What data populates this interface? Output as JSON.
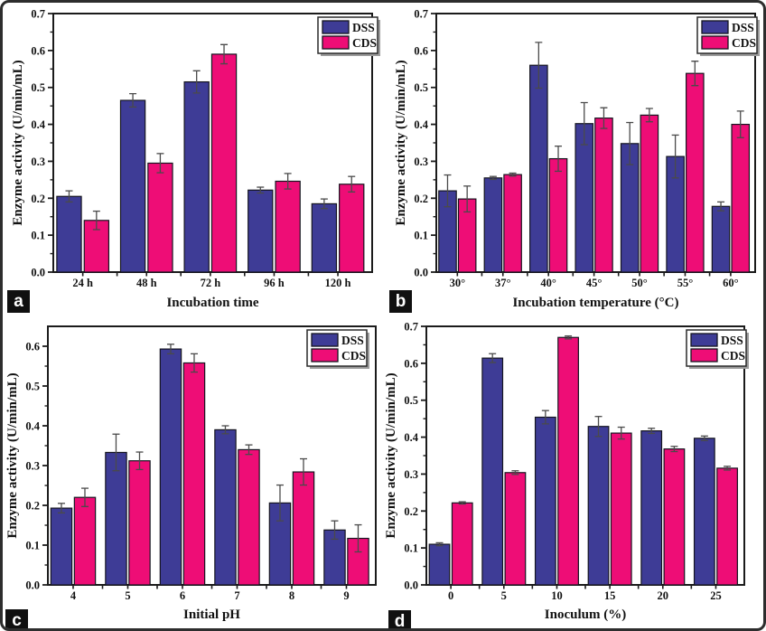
{
  "figure": {
    "description": "Four-panel grouped bar chart figure of enzyme activity under varying culture conditions",
    "background": "#ffffff",
    "border_color": "#2d2d2d",
    "series_colors": {
      "DSS": "#3e3c96",
      "CDS": "#ee0d76"
    },
    "legend_labels": [
      "DSS",
      "CDS"
    ],
    "panel_tags": [
      "a",
      "b",
      "c",
      "d"
    ]
  },
  "chart_data": [
    {
      "type": "bar",
      "tag": "a",
      "title": "",
      "xlabel": "Incubation time",
      "ylabel": "Enzyme activity (U/min/mL)",
      "categories": [
        "24 h",
        "48 h",
        "72 h",
        "96 h",
        "120 h"
      ],
      "ylim": [
        0,
        0.7
      ],
      "ytick_step": 0.1,
      "ytick_label_max": 0.7,
      "grid": false,
      "legend_position": "top-right",
      "series": [
        {
          "name": "DSS",
          "color": "#3e3c96",
          "values": [
            0.205,
            0.465,
            0.515,
            0.222,
            0.185
          ],
          "errors": [
            0.015,
            0.018,
            0.03,
            0.008,
            0.013
          ]
        },
        {
          "name": "CDS",
          "color": "#ee0d76",
          "values": [
            0.14,
            0.295,
            0.59,
            0.246,
            0.238
          ],
          "errors": [
            0.025,
            0.026,
            0.026,
            0.021,
            0.021
          ]
        }
      ]
    },
    {
      "type": "bar",
      "tag": "b",
      "title": "",
      "xlabel": "Incubation temperature (°C)",
      "ylabel": "Enzyme activity (U/min/mL)",
      "categories": [
        "30°",
        "37°",
        "40°",
        "45°",
        "50°",
        "55°",
        "60°"
      ],
      "ylim": [
        0,
        0.7
      ],
      "ytick_step": 0.1,
      "ytick_label_max": 0.7,
      "grid": false,
      "legend_position": "top-right",
      "series": [
        {
          "name": "DSS",
          "color": "#3e3c96",
          "values": [
            0.22,
            0.255,
            0.56,
            0.402,
            0.348,
            0.313,
            0.178
          ],
          "errors": [
            0.043,
            0.004,
            0.062,
            0.057,
            0.057,
            0.058,
            0.012
          ]
        },
        {
          "name": "CDS",
          "color": "#ee0d76",
          "values": [
            0.198,
            0.264,
            0.307,
            0.417,
            0.425,
            0.538,
            0.4
          ],
          "errors": [
            0.035,
            0.004,
            0.034,
            0.028,
            0.018,
            0.033,
            0.036
          ]
        }
      ]
    },
    {
      "type": "bar",
      "tag": "c",
      "title": "",
      "xlabel": "Initial pH",
      "ylabel": "Enzyme activity (U/min/mL)",
      "categories": [
        "4",
        "5",
        "6",
        "7",
        "8",
        "9"
      ],
      "ylim": [
        0,
        0.65
      ],
      "ytick_step": 0.1,
      "ytick_label_max": 0.6,
      "grid": false,
      "legend_position": "top-right",
      "series": [
        {
          "name": "DSS",
          "color": "#3e3c96",
          "values": [
            0.193,
            0.333,
            0.593,
            0.39,
            0.206,
            0.138
          ],
          "errors": [
            0.012,
            0.046,
            0.012,
            0.01,
            0.045,
            0.023
          ]
        },
        {
          "name": "CDS",
          "color": "#ee0d76",
          "values": [
            0.22,
            0.312,
            0.558,
            0.34,
            0.284,
            0.117
          ],
          "errors": [
            0.023,
            0.022,
            0.023,
            0.012,
            0.033,
            0.034
          ]
        }
      ]
    },
    {
      "type": "bar",
      "tag": "d",
      "title": "",
      "xlabel": "Inoculum (%)",
      "ylabel": "Enzyme activity (U/min/mL)",
      "categories": [
        "0",
        "5",
        "10",
        "15",
        "20",
        "25"
      ],
      "ylim": [
        0,
        0.7
      ],
      "ytick_step": 0.1,
      "ytick_label_max": 0.7,
      "grid": false,
      "legend_position": "top-right",
      "series": [
        {
          "name": "DSS",
          "color": "#3e3c96",
          "values": [
            0.11,
            0.614,
            0.454,
            0.429,
            0.417,
            0.397
          ],
          "errors": [
            0.004,
            0.012,
            0.018,
            0.027,
            0.007,
            0.006
          ]
        },
        {
          "name": "CDS",
          "color": "#ee0d76",
          "values": [
            0.222,
            0.304,
            0.67,
            0.411,
            0.368,
            0.316
          ],
          "errors": [
            0.003,
            0.005,
            0.004,
            0.016,
            0.007,
            0.005
          ]
        }
      ]
    }
  ]
}
